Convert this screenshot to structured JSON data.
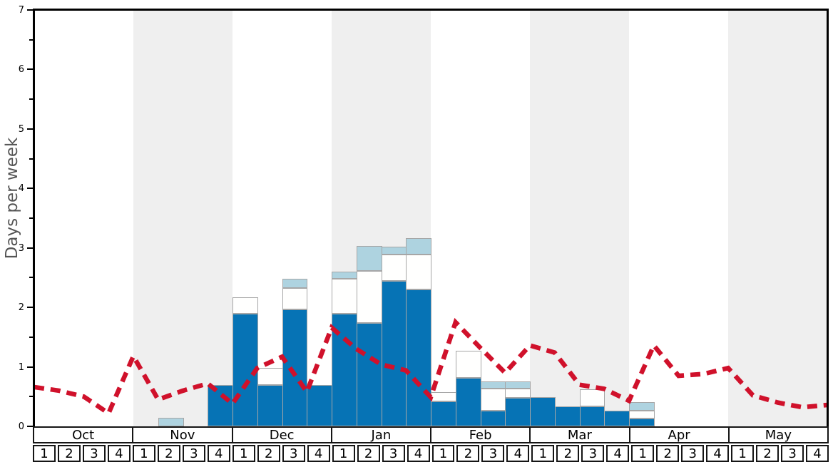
{
  "chart_data": {
    "type": "bar",
    "subtype": "stacked-bars-with-dashed-line-overlay",
    "ylabel": "Days per week",
    "ylim": [
      0,
      7
    ],
    "y_major_ticks": [
      0,
      1,
      2,
      3,
      4,
      5,
      6,
      7
    ],
    "y_minor_tick_step": 0.5,
    "grid": "off",
    "legend": "none",
    "months": [
      "Oct",
      "Nov",
      "Dec",
      "Jan",
      "Feb",
      "Mar",
      "Apr",
      "May"
    ],
    "week_labels": [
      "1",
      "2",
      "3",
      "4"
    ],
    "weeks_per_month": 4,
    "band_colors": {
      "even_month": "#ffffff",
      "odd_month": "#efefef"
    },
    "series": [
      {
        "name": "dark-blue-days",
        "color": "#0673b5",
        "values": [
          0,
          0,
          0,
          0,
          0,
          0,
          0,
          0.7,
          1.89,
          0.7,
          1.96,
          0.7,
          1.89,
          1.74,
          2.45,
          2.3,
          0.42,
          0.82,
          0.26,
          0.48,
          0.49,
          0.34,
          0.34,
          0.26,
          0.13,
          0,
          0,
          0,
          0,
          0,
          0,
          0
        ]
      },
      {
        "name": "white-days",
        "color": "#fffffe",
        "values": [
          0,
          0,
          0,
          0,
          0,
          0,
          0,
          0,
          0.28,
          0.28,
          0.37,
          0,
          0.59,
          0.87,
          0.44,
          0.59,
          0.16,
          0.45,
          0.37,
          0.15,
          0,
          0,
          0.28,
          0,
          0.13,
          0,
          0,
          0,
          0,
          0,
          0,
          0
        ]
      },
      {
        "name": "light-blue-days",
        "color": "#aed3e0",
        "values": [
          0,
          0,
          0,
          0,
          0,
          0.14,
          0,
          0,
          0,
          0,
          0.15,
          0,
          0.12,
          0.42,
          0.13,
          0.28,
          0,
          0,
          0.13,
          0.13,
          0,
          0,
          0,
          0,
          0.15,
          0,
          0,
          0,
          0,
          0,
          0,
          0
        ]
      }
    ],
    "line": {
      "name": "red-dashed-trend",
      "color": "#d0112b",
      "style": "dashed",
      "x_positions": "week-start-boundaries-plus-right-edge",
      "values": [
        0.66,
        0.6,
        0.5,
        0.22,
        1.18,
        0.45,
        0.6,
        0.72,
        0.38,
        0.98,
        1.17,
        0.58,
        1.66,
        1.3,
        1.04,
        0.94,
        0.49,
        1.75,
        1.32,
        0.9,
        1.36,
        1.24,
        0.7,
        0.63,
        0.43,
        1.36,
        0.85,
        0.88,
        0.98,
        0.52,
        0.4,
        0.32,
        0.36
      ]
    }
  },
  "y_axis": {
    "label": "Days per week",
    "tick_labels": [
      "0",
      "1",
      "2",
      "3",
      "4",
      "5",
      "6",
      "7"
    ]
  },
  "x_axis": {
    "months": [
      "Oct",
      "Nov",
      "Dec",
      "Jan",
      "Feb",
      "Mar",
      "Apr",
      "May"
    ],
    "weeks": [
      "1",
      "2",
      "3",
      "4"
    ]
  }
}
